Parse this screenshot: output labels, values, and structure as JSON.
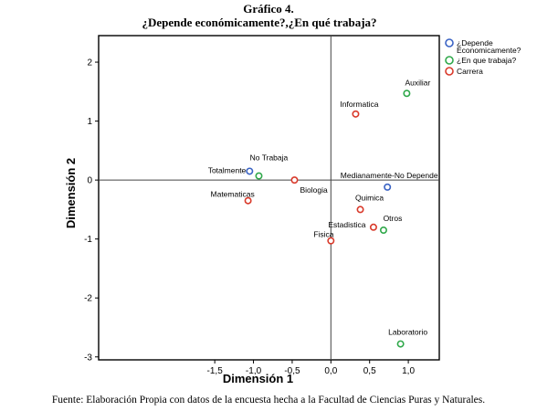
{
  "header": {
    "title": "Gráfico 4.",
    "subtitle": "¿Depende económicamente?,¿En qué trabaja?"
  },
  "footer": {
    "source": "Fuente: Elaboración Propia con datos de la encuesta hecha a la Facultad de Ciencias Puras y Naturales."
  },
  "colors": {
    "depende": "#3a63c4",
    "trabaja": "#2fa84a",
    "carrera": "#d93a2b",
    "plot_border": "#000000",
    "ref_lines": "#444444"
  },
  "chart_data": {
    "type": "scatter",
    "title": "",
    "xlabel": "Dimensión 1",
    "ylabel": "Dimensión 2",
    "xlim": [
      -3.0,
      1.4
    ],
    "ylim": [
      -3.05,
      2.45
    ],
    "xticks": [
      "-1,5",
      "-1,0",
      "-0,5",
      "0,0",
      "0,5",
      "1,0"
    ],
    "xtick_values": [
      -1.5,
      -1.0,
      -0.5,
      0.0,
      0.5,
      1.0
    ],
    "yticks": [
      "2",
      "1",
      "0",
      "-1",
      "-2",
      "-3"
    ],
    "ytick_values": [
      2,
      1,
      0,
      -1,
      -2,
      -3
    ],
    "reference_lines": {
      "x": 0,
      "y": 0
    },
    "legend_position": "top-right outside",
    "series": [
      {
        "name": "¿Depende Economicamente?",
        "color_key": "depende",
        "points": [
          {
            "label": "Totalmente",
            "x": -1.05,
            "y": 0.15
          },
          {
            "label": "Medianamente-No Depende",
            "x": 0.73,
            "y": -0.12
          }
        ]
      },
      {
        "name": "¿En que trabaja?",
        "color_key": "trabaja",
        "points": [
          {
            "label": "No Trabaja",
            "x": -0.93,
            "y": 0.07
          },
          {
            "label": "Auxiliar",
            "x": 0.98,
            "y": 1.47
          },
          {
            "label": "Otros",
            "x": 0.68,
            "y": -0.85
          },
          {
            "label": "Laboratorio",
            "x": 0.9,
            "y": -2.78
          }
        ]
      },
      {
        "name": "Carrera",
        "color_key": "carrera",
        "points": [
          {
            "label": "Informatica",
            "x": 0.32,
            "y": 1.12
          },
          {
            "label": "Biologia",
            "x": -0.47,
            "y": 0.0
          },
          {
            "label": "Matematicas",
            "x": -1.07,
            "y": -0.35
          },
          {
            "label": "Quimica",
            "x": 0.38,
            "y": -0.5
          },
          {
            "label": "Estadistica",
            "x": 0.55,
            "y": -0.8
          },
          {
            "label": "Fisica",
            "x": 0.0,
            "y": -1.03
          }
        ]
      }
    ]
  }
}
